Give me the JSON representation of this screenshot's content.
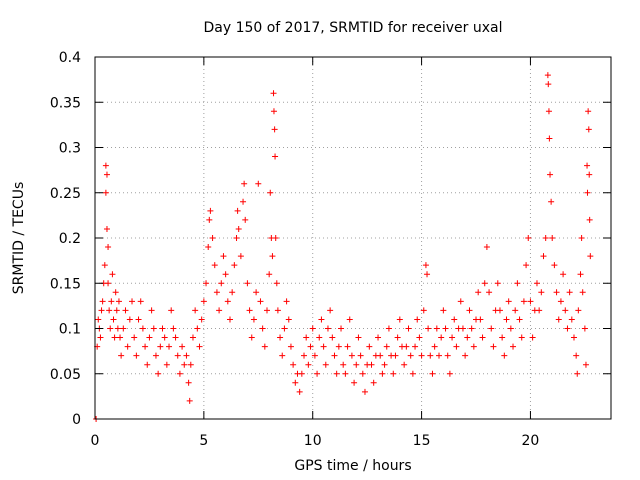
{
  "chart_data": {
    "type": "scatter",
    "title": "Day 150 of 2017, SRMTID for receiver uxal",
    "xlabel": "GPS time / hours",
    "ylabel": "SRMTID / TECUs",
    "xlim": [
      0,
      23.7
    ],
    "ylim": [
      0,
      0.4
    ],
    "x_ticks": [
      0,
      5,
      10,
      15,
      20
    ],
    "x_tick_labels": [
      "0",
      "5",
      "10",
      "15",
      "20"
    ],
    "y_ticks": [
      0,
      0.05,
      0.1,
      0.15,
      0.2,
      0.25,
      0.3,
      0.35,
      0.4
    ],
    "y_tick_labels": [
      "0",
      "0.05",
      "0.1",
      "0.15",
      "0.2",
      "0.25",
      "0.3",
      "0.35",
      "0.4"
    ],
    "grid": true,
    "marker": "+",
    "color": "#ff0000",
    "series": [
      {
        "name": "SRMTID",
        "points": [
          [
            0.05,
            0.0
          ],
          [
            0.1,
            0.08
          ],
          [
            0.15,
            0.11
          ],
          [
            0.2,
            0.1
          ],
          [
            0.25,
            0.09
          ],
          [
            0.3,
            0.12
          ],
          [
            0.35,
            0.13
          ],
          [
            0.4,
            0.15
          ],
          [
            0.45,
            0.17
          ],
          [
            0.5,
            0.25
          ],
          [
            0.5,
            0.28
          ],
          [
            0.55,
            0.27
          ],
          [
            0.55,
            0.21
          ],
          [
            0.6,
            0.19
          ],
          [
            0.6,
            0.15
          ],
          [
            0.65,
            0.12
          ],
          [
            0.7,
            0.1
          ],
          [
            0.75,
            0.13
          ],
          [
            0.8,
            0.16
          ],
          [
            0.85,
            0.11
          ],
          [
            0.9,
            0.09
          ],
          [
            0.95,
            0.14
          ],
          [
            1.0,
            0.12
          ],
          [
            1.05,
            0.1
          ],
          [
            1.1,
            0.13
          ],
          [
            1.15,
            0.09
          ],
          [
            1.2,
            0.07
          ],
          [
            1.3,
            0.1
          ],
          [
            1.4,
            0.12
          ],
          [
            1.5,
            0.08
          ],
          [
            1.6,
            0.11
          ],
          [
            1.7,
            0.13
          ],
          [
            1.8,
            0.09
          ],
          [
            1.9,
            0.07
          ],
          [
            2.0,
            0.11
          ],
          [
            2.1,
            0.13
          ],
          [
            2.2,
            0.1
          ],
          [
            2.3,
            0.08
          ],
          [
            2.4,
            0.06
          ],
          [
            2.5,
            0.09
          ],
          [
            2.6,
            0.12
          ],
          [
            2.7,
            0.1
          ],
          [
            2.8,
            0.07
          ],
          [
            2.9,
            0.05
          ],
          [
            3.0,
            0.08
          ],
          [
            3.1,
            0.1
          ],
          [
            3.2,
            0.09
          ],
          [
            3.3,
            0.06
          ],
          [
            3.4,
            0.08
          ],
          [
            3.5,
            0.12
          ],
          [
            3.6,
            0.1
          ],
          [
            3.7,
            0.09
          ],
          [
            3.8,
            0.07
          ],
          [
            3.9,
            0.05
          ],
          [
            4.0,
            0.08
          ],
          [
            4.1,
            0.06
          ],
          [
            4.2,
            0.07
          ],
          [
            4.3,
            0.04
          ],
          [
            4.35,
            0.02
          ],
          [
            4.4,
            0.06
          ],
          [
            4.5,
            0.09
          ],
          [
            4.6,
            0.12
          ],
          [
            4.7,
            0.1
          ],
          [
            4.8,
            0.08
          ],
          [
            4.9,
            0.11
          ],
          [
            5.0,
            0.13
          ],
          [
            5.1,
            0.15
          ],
          [
            5.2,
            0.19
          ],
          [
            5.25,
            0.22
          ],
          [
            5.3,
            0.23
          ],
          [
            5.4,
            0.2
          ],
          [
            5.5,
            0.17
          ],
          [
            5.6,
            0.14
          ],
          [
            5.7,
            0.12
          ],
          [
            5.8,
            0.15
          ],
          [
            5.9,
            0.18
          ],
          [
            6.0,
            0.16
          ],
          [
            6.1,
            0.13
          ],
          [
            6.2,
            0.11
          ],
          [
            6.3,
            0.14
          ],
          [
            6.4,
            0.17
          ],
          [
            6.5,
            0.2
          ],
          [
            6.55,
            0.23
          ],
          [
            6.6,
            0.21
          ],
          [
            6.7,
            0.18
          ],
          [
            6.8,
            0.24
          ],
          [
            6.85,
            0.26
          ],
          [
            6.9,
            0.22
          ],
          [
            7.0,
            0.15
          ],
          [
            7.1,
            0.12
          ],
          [
            7.2,
            0.09
          ],
          [
            7.3,
            0.11
          ],
          [
            7.4,
            0.14
          ],
          [
            7.5,
            0.26
          ],
          [
            7.6,
            0.13
          ],
          [
            7.7,
            0.1
          ],
          [
            7.8,
            0.08
          ],
          [
            7.9,
            0.12
          ],
          [
            8.0,
            0.16
          ],
          [
            8.05,
            0.25
          ],
          [
            8.1,
            0.2
          ],
          [
            8.15,
            0.18
          ],
          [
            8.2,
            0.36
          ],
          [
            8.22,
            0.34
          ],
          [
            8.25,
            0.32
          ],
          [
            8.27,
            0.29
          ],
          [
            8.3,
            0.2
          ],
          [
            8.35,
            0.15
          ],
          [
            8.4,
            0.12
          ],
          [
            8.5,
            0.09
          ],
          [
            8.6,
            0.07
          ],
          [
            8.7,
            0.1
          ],
          [
            8.8,
            0.13
          ],
          [
            8.9,
            0.11
          ],
          [
            9.0,
            0.08
          ],
          [
            9.1,
            0.06
          ],
          [
            9.2,
            0.04
          ],
          [
            9.3,
            0.05
          ],
          [
            9.4,
            0.03
          ],
          [
            9.5,
            0.05
          ],
          [
            9.6,
            0.07
          ],
          [
            9.7,
            0.09
          ],
          [
            9.8,
            0.06
          ],
          [
            9.9,
            0.08
          ],
          [
            10.0,
            0.1
          ],
          [
            10.1,
            0.07
          ],
          [
            10.2,
            0.05
          ],
          [
            10.3,
            0.09
          ],
          [
            10.4,
            0.11
          ],
          [
            10.5,
            0.08
          ],
          [
            10.6,
            0.06
          ],
          [
            10.7,
            0.1
          ],
          [
            10.8,
            0.12
          ],
          [
            10.9,
            0.09
          ],
          [
            11.0,
            0.07
          ],
          [
            11.1,
            0.05
          ],
          [
            11.2,
            0.08
          ],
          [
            11.3,
            0.1
          ],
          [
            11.4,
            0.06
          ],
          [
            11.5,
            0.05
          ],
          [
            11.6,
            0.08
          ],
          [
            11.7,
            0.11
          ],
          [
            11.8,
            0.07
          ],
          [
            11.9,
            0.04
          ],
          [
            12.0,
            0.06
          ],
          [
            12.1,
            0.09
          ],
          [
            12.2,
            0.07
          ],
          [
            12.3,
            0.05
          ],
          [
            12.4,
            0.03
          ],
          [
            12.5,
            0.06
          ],
          [
            12.6,
            0.08
          ],
          [
            12.7,
            0.06
          ],
          [
            12.8,
            0.04
          ],
          [
            12.9,
            0.07
          ],
          [
            13.0,
            0.09
          ],
          [
            13.1,
            0.07
          ],
          [
            13.2,
            0.05
          ],
          [
            13.3,
            0.06
          ],
          [
            13.4,
            0.08
          ],
          [
            13.5,
            0.1
          ],
          [
            13.6,
            0.07
          ],
          [
            13.7,
            0.05
          ],
          [
            13.8,
            0.07
          ],
          [
            13.9,
            0.09
          ],
          [
            14.0,
            0.11
          ],
          [
            14.1,
            0.08
          ],
          [
            14.2,
            0.06
          ],
          [
            14.3,
            0.08
          ],
          [
            14.4,
            0.1
          ],
          [
            14.5,
            0.07
          ],
          [
            14.6,
            0.05
          ],
          [
            14.7,
            0.08
          ],
          [
            14.8,
            0.11
          ],
          [
            14.9,
            0.09
          ],
          [
            15.0,
            0.07
          ],
          [
            15.1,
            0.12
          ],
          [
            15.2,
            0.17
          ],
          [
            15.25,
            0.16
          ],
          [
            15.3,
            0.1
          ],
          [
            15.4,
            0.07
          ],
          [
            15.5,
            0.05
          ],
          [
            15.6,
            0.08
          ],
          [
            15.7,
            0.1
          ],
          [
            15.8,
            0.07
          ],
          [
            15.9,
            0.09
          ],
          [
            16.0,
            0.12
          ],
          [
            16.1,
            0.1
          ],
          [
            16.2,
            0.07
          ],
          [
            16.3,
            0.05
          ],
          [
            16.4,
            0.09
          ],
          [
            16.5,
            0.11
          ],
          [
            16.6,
            0.08
          ],
          [
            16.7,
            0.1
          ],
          [
            16.8,
            0.13
          ],
          [
            16.9,
            0.1
          ],
          [
            17.0,
            0.07
          ],
          [
            17.1,
            0.09
          ],
          [
            17.2,
            0.12
          ],
          [
            17.3,
            0.1
          ],
          [
            17.4,
            0.08
          ],
          [
            17.5,
            0.11
          ],
          [
            17.6,
            0.14
          ],
          [
            17.7,
            0.11
          ],
          [
            17.8,
            0.09
          ],
          [
            17.9,
            0.15
          ],
          [
            18.0,
            0.19
          ],
          [
            18.1,
            0.14
          ],
          [
            18.2,
            0.1
          ],
          [
            18.3,
            0.08
          ],
          [
            18.4,
            0.12
          ],
          [
            18.5,
            0.15
          ],
          [
            18.6,
            0.12
          ],
          [
            18.7,
            0.09
          ],
          [
            18.8,
            0.07
          ],
          [
            18.9,
            0.11
          ],
          [
            19.0,
            0.13
          ],
          [
            19.1,
            0.1
          ],
          [
            19.2,
            0.08
          ],
          [
            19.3,
            0.12
          ],
          [
            19.4,
            0.15
          ],
          [
            19.5,
            0.11
          ],
          [
            19.6,
            0.09
          ],
          [
            19.7,
            0.13
          ],
          [
            19.8,
            0.17
          ],
          [
            19.9,
            0.2
          ],
          [
            20.0,
            0.13
          ],
          [
            20.1,
            0.09
          ],
          [
            20.2,
            0.12
          ],
          [
            20.3,
            0.15
          ],
          [
            20.4,
            0.12
          ],
          [
            20.5,
            0.14
          ],
          [
            20.6,
            0.18
          ],
          [
            20.7,
            0.2
          ],
          [
            20.8,
            0.38
          ],
          [
            20.82,
            0.37
          ],
          [
            20.85,
            0.34
          ],
          [
            20.87,
            0.31
          ],
          [
            20.9,
            0.27
          ],
          [
            20.95,
            0.24
          ],
          [
            21.0,
            0.2
          ],
          [
            21.1,
            0.17
          ],
          [
            21.2,
            0.14
          ],
          [
            21.3,
            0.11
          ],
          [
            21.4,
            0.13
          ],
          [
            21.5,
            0.16
          ],
          [
            21.6,
            0.12
          ],
          [
            21.7,
            0.1
          ],
          [
            21.8,
            0.14
          ],
          [
            21.9,
            0.11
          ],
          [
            22.0,
            0.09
          ],
          [
            22.1,
            0.07
          ],
          [
            22.15,
            0.05
          ],
          [
            22.2,
            0.12
          ],
          [
            22.3,
            0.16
          ],
          [
            22.35,
            0.2
          ],
          [
            22.4,
            0.14
          ],
          [
            22.5,
            0.1
          ],
          [
            22.55,
            0.06
          ],
          [
            22.6,
            0.28
          ],
          [
            22.62,
            0.25
          ],
          [
            22.65,
            0.34
          ],
          [
            22.68,
            0.32
          ],
          [
            22.7,
            0.27
          ],
          [
            22.72,
            0.22
          ],
          [
            22.75,
            0.18
          ]
        ]
      }
    ]
  }
}
